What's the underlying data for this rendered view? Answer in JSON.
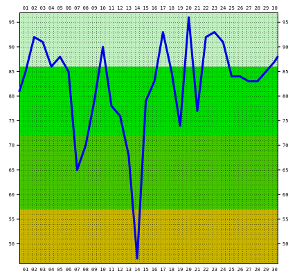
{
  "chart_data": {
    "type": "line",
    "x": [
      "01",
      "02",
      "03",
      "04",
      "05",
      "06",
      "07",
      "08",
      "09",
      "10",
      "11",
      "12",
      "13",
      "14",
      "15",
      "16",
      "17",
      "18",
      "19",
      "20",
      "21",
      "22",
      "23",
      "24",
      "25",
      "26",
      "27",
      "28",
      "29",
      "30"
    ],
    "y": [
      85,
      92,
      91,
      86,
      88,
      85,
      65,
      70,
      79,
      90,
      78,
      76,
      68,
      47,
      79,
      83,
      93,
      85,
      74,
      96,
      77,
      92,
      93,
      91,
      84,
      84,
      83,
      83,
      85,
      87
    ],
    "y_start": 81,
    "y_end": 88,
    "ylim": [
      46,
      97
    ],
    "yticks": [
      50,
      55,
      60,
      65,
      70,
      75,
      80,
      85,
      90,
      95
    ],
    "grid": true,
    "bands": [
      {
        "from": 46,
        "to": 57,
        "color": "#c8b400"
      },
      {
        "from": 57,
        "to": 72,
        "color": "#44c400"
      },
      {
        "from": 72,
        "to": 86,
        "color": "#00dc00"
      },
      {
        "from": 86,
        "to": 97,
        "color": "#c0f0c0"
      }
    ],
    "line_color": "#0000e6",
    "title": "",
    "xlabel": "",
    "ylabel": ""
  }
}
